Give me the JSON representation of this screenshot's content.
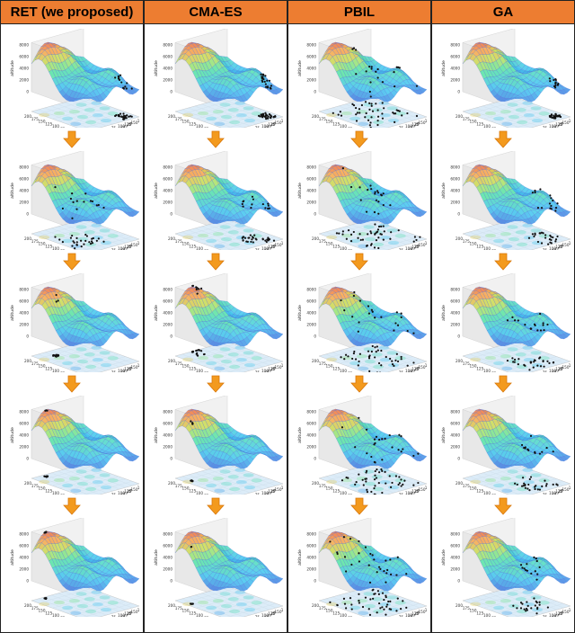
{
  "columns": [
    {
      "id": "ret",
      "title": "RET (we proposed)"
    },
    {
      "id": "cmaes",
      "title": "CMA-ES"
    },
    {
      "id": "pbil",
      "title": "PBIL"
    },
    {
      "id": "ga",
      "title": "GA"
    }
  ],
  "axes": {
    "x_label": "longitude",
    "y_label": "latitude",
    "z_label": "altitude",
    "x_ticks": [
      "200",
      "175",
      "150",
      "125",
      "100",
      "75",
      "50",
      "25",
      "0"
    ],
    "y_ticks": [
      "0",
      "25",
      "50",
      "75",
      "100",
      "125",
      "150",
      "175",
      "200"
    ],
    "z_ticks": [
      "0",
      "2000",
      "4000",
      "6000",
      "8000"
    ]
  },
  "colors": {
    "header_bg": "#ed7d31",
    "arrow": "#f39a1e",
    "divider": "#222222"
  },
  "icons": {
    "down_arrow": "down-arrow-icon"
  },
  "stages": 5
}
